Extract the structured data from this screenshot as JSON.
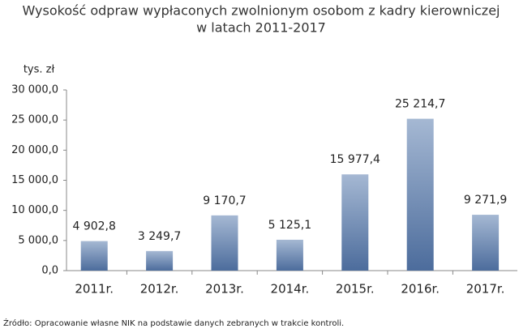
{
  "chart_data": {
    "type": "bar",
    "title": [
      "Wysokość odpraw wypłaconych zwolnionym osobom z kadry kierowniczej",
      "w latach 2011-2017"
    ],
    "y_axis_label": "tys. zł",
    "categories": [
      "2011r.",
      "2012r.",
      "2013r.",
      "2014r.",
      "2015r.",
      "2016r.",
      "2017r."
    ],
    "values": [
      4902.8,
      3249.7,
      9170.7,
      5125.1,
      15977.4,
      25214.7,
      9271.9
    ],
    "value_labels": [
      "4 902,8",
      "3 249,7",
      "9 170,7",
      "5 125,1",
      "15 977,4",
      "25 214,7",
      "9 271,9"
    ],
    "color": [
      "#a5b8d3",
      "#4c6c9c"
    ],
    "ylim": [
      0,
      30000
    ],
    "yticks": [
      {
        "value": 0,
        "label": "0,0"
      },
      {
        "value": 5000,
        "label": "5 000,0"
      },
      {
        "value": 10000,
        "label": "10 000,0"
      },
      {
        "value": 15000,
        "label": "15 000,0"
      },
      {
        "value": 20000,
        "label": "20 000,0"
      },
      {
        "value": 25000,
        "label": "25 000,0"
      },
      {
        "value": 30000,
        "label": "30 000,0"
      }
    ],
    "grid": false,
    "source": "Źródło: Opracowanie własne NIK na podstawie danych zebranych w trakcie kontroli."
  }
}
